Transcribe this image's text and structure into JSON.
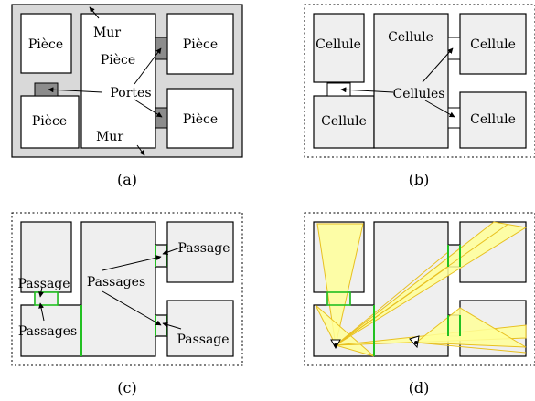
{
  "panels": {
    "a": {
      "caption": "(a)",
      "room_top_left": "Pièce",
      "room_center": "Pièce",
      "room_top_right": "Pièce",
      "room_bottom_left": "Pièce",
      "room_bottom_right": "Pièce",
      "wall_top": "Mur",
      "wall_bottom": "Mur",
      "doors": "Portes"
    },
    "b": {
      "caption": "(b)",
      "cell_top_left": "Cellule",
      "cell_center": "Cellule",
      "cell_top_right": "Cellule",
      "cell_bottom_left": "Cellule",
      "cell_bottom_right": "Cellule",
      "cells": "Cellules"
    },
    "c": {
      "caption": "(c)",
      "passage_left": "Passage",
      "passages_left": "Passages",
      "passages_center": "Passages",
      "passage_top_right": "Passage",
      "passage_bottom_right": "Passage"
    },
    "d": {
      "caption": "(d)"
    }
  },
  "colors": {
    "wall_fill": "#d9d9d9",
    "cell_fill": "#efefef",
    "door_fill": "#8c8c8c",
    "portal": "#22c022",
    "visibility_fill": "#ffff99",
    "visibility_edge": "#e8c020"
  }
}
